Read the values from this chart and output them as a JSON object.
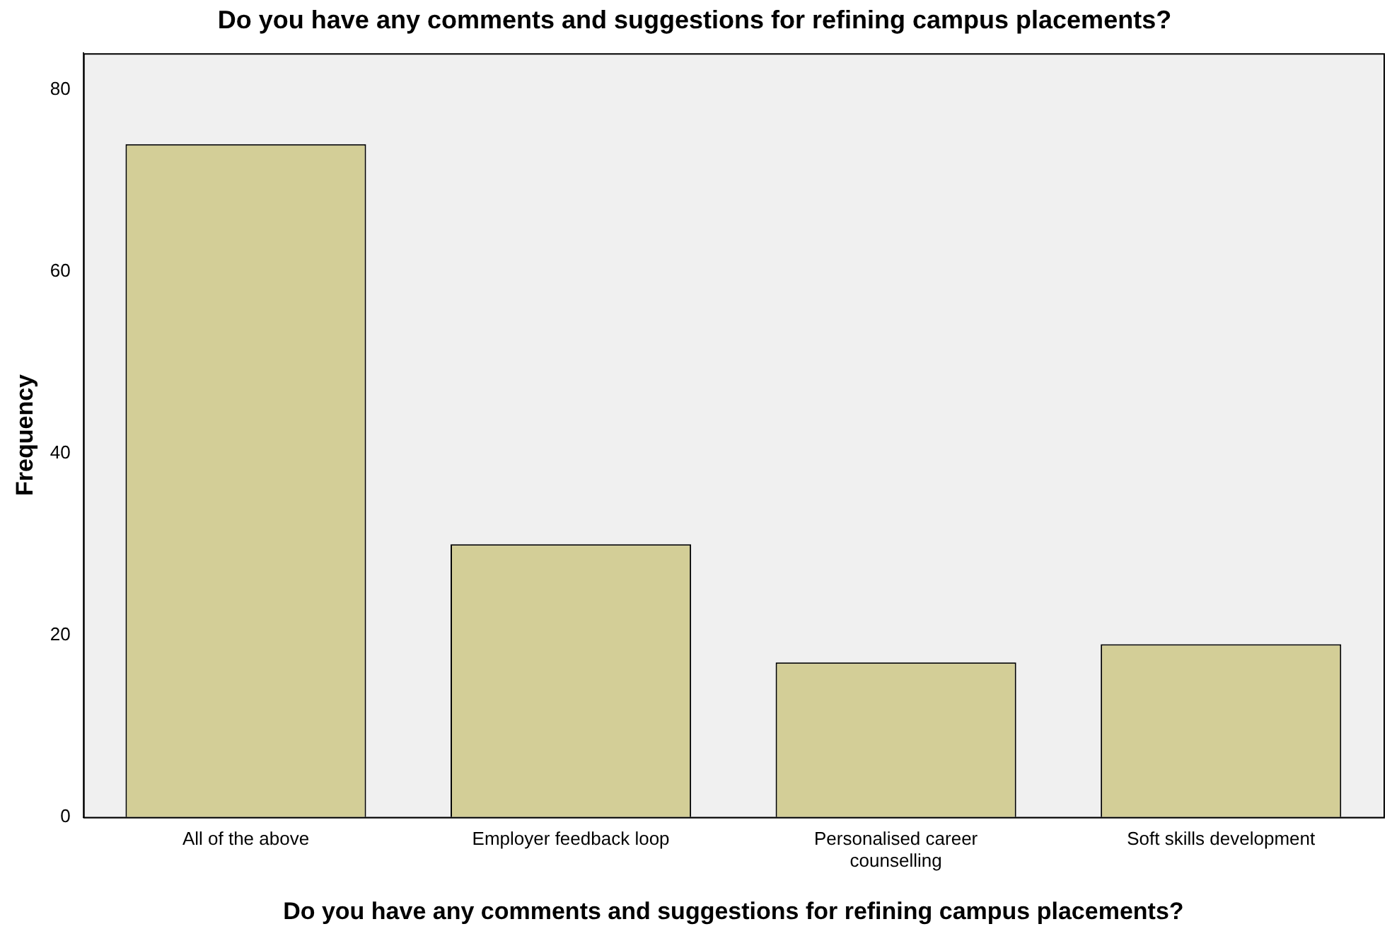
{
  "chart_data": {
    "type": "bar",
    "title": "Do you have any comments and suggestions for refining campus placements?",
    "xlabel": "Do you have any comments and suggestions for refining campus placements?",
    "ylabel": "Frequency",
    "categories": [
      "All of the above",
      "Employer feedback loop",
      "Personalised career counselling",
      "Soft skills development"
    ],
    "values": [
      74,
      30,
      17,
      19
    ],
    "color": "#d3ce97",
    "ylim": [
      0,
      84
    ],
    "yticks": [
      0,
      20,
      40,
      60,
      80
    ],
    "grid": false,
    "legend": false
  }
}
